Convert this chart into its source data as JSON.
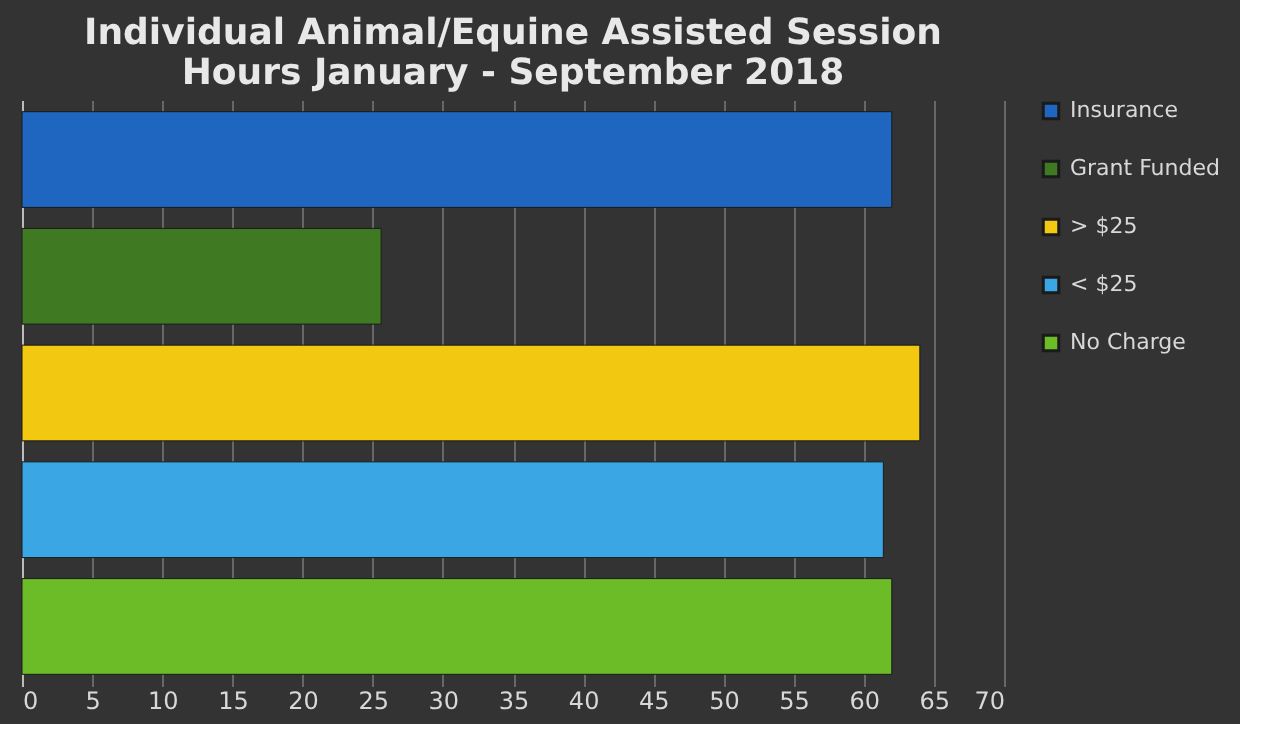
{
  "chart_data": {
    "type": "bar",
    "orientation": "horizontal",
    "title": [
      "Individual Animal/Equine Assisted Session",
      "Hours January - September 2018"
    ],
    "categories": [
      null,
      null,
      null,
      null,
      null
    ],
    "series": [
      {
        "name": "Insurance",
        "color": "#1f66c0",
        "values": [
          62,
          null,
          null,
          null,
          null
        ]
      },
      {
        "name": "Grant Funded",
        "color": "#3f7a22",
        "values": [
          null,
          25.6,
          null,
          null,
          null
        ]
      },
      {
        "name": "> $25",
        "color": "#f2c811",
        "values": [
          null,
          null,
          64,
          null,
          null
        ]
      },
      {
        "name": "< $25",
        "color": "#3ba6e4",
        "values": [
          null,
          null,
          null,
          61.4,
          null
        ]
      },
      {
        "name": "No Charge",
        "color": "#6cbc28",
        "values": [
          null,
          null,
          null,
          null,
          62
        ]
      }
    ],
    "xlim": [
      0,
      70
    ],
    "xticks": [
      0,
      5,
      10,
      15,
      20,
      25,
      30,
      35,
      40,
      45,
      50,
      55,
      60,
      65,
      70
    ],
    "grid": "x",
    "legend": "right",
    "tick_labels": "x"
  }
}
